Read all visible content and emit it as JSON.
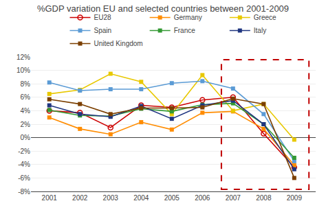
{
  "chart_data": {
    "type": "line",
    "title": "%GDP variation EU and selected countries between 2001-2009",
    "x": [
      2001,
      2002,
      2003,
      2004,
      2005,
      2006,
      2007,
      2008,
      2009
    ],
    "series": [
      {
        "name": "EU28",
        "color": "#cc0000",
        "marker": "circle-open",
        "values": [
          4.0,
          3.7,
          1.5,
          4.8,
          4.5,
          5.6,
          6.0,
          0.6,
          -4.4
        ]
      },
      {
        "name": "Germany",
        "color": "#ff8c00",
        "marker": "square",
        "values": [
          3.0,
          1.3,
          0.5,
          2.3,
          1.2,
          3.7,
          3.9,
          1.3,
          -4.1
        ]
      },
      {
        "name": "Greece",
        "color": "#e8c800",
        "marker": "square",
        "values": [
          6.5,
          7.1,
          9.5,
          8.3,
          3.5,
          9.3,
          4.0,
          5.0,
          -0.3
        ]
      },
      {
        "name": "Spain",
        "color": "#5b9bd5",
        "marker": "square",
        "values": [
          8.2,
          7.0,
          7.2,
          7.2,
          8.1,
          8.4,
          7.3,
          3.5,
          -3.5
        ]
      },
      {
        "name": "France",
        "color": "#339933",
        "marker": "square",
        "values": [
          4.1,
          3.3,
          3.2,
          4.3,
          3.9,
          4.9,
          5.1,
          2.0,
          -3.0
        ]
      },
      {
        "name": "Italy",
        "color": "#1f3580",
        "marker": "square",
        "values": [
          4.8,
          3.5,
          3.1,
          4.7,
          2.8,
          4.8,
          5.5,
          2.0,
          -4.7
        ]
      },
      {
        "name": "United Kingdom",
        "color": "#7b3f00",
        "marker": "square",
        "values": [
          5.7,
          5.0,
          3.5,
          4.4,
          4.4,
          4.5,
          5.8,
          5.0,
          -6.0
        ]
      }
    ],
    "xlim": [
      2000.4,
      2009.7
    ],
    "xticks": [
      2001,
      2002,
      2003,
      2004,
      2005,
      2006,
      2007,
      2008,
      2009
    ],
    "ylim": [
      -8,
      12
    ],
    "yticks": [
      {
        "value": -8,
        "label": "-8%"
      },
      {
        "value": -6,
        "label": "-6%"
      },
      {
        "value": -4,
        "label": "-4%"
      },
      {
        "value": -2,
        "label": "-2%"
      },
      {
        "value": 0,
        "label": "0%"
      },
      {
        "value": 2,
        "label": "2%"
      },
      {
        "value": 4,
        "label": "4%"
      },
      {
        "value": 6,
        "label": "6%"
      },
      {
        "value": 8,
        "label": "8%"
      },
      {
        "value": 10,
        "label": "10%"
      },
      {
        "value": 12,
        "label": "12%"
      }
    ],
    "grid": true,
    "legend": "top",
    "highlight": {
      "x": [
        2006.62,
        2009.48
      ],
      "y": [
        -7.7,
        11.6
      ],
      "color": "#c00000",
      "line_style": "dash"
    }
  }
}
